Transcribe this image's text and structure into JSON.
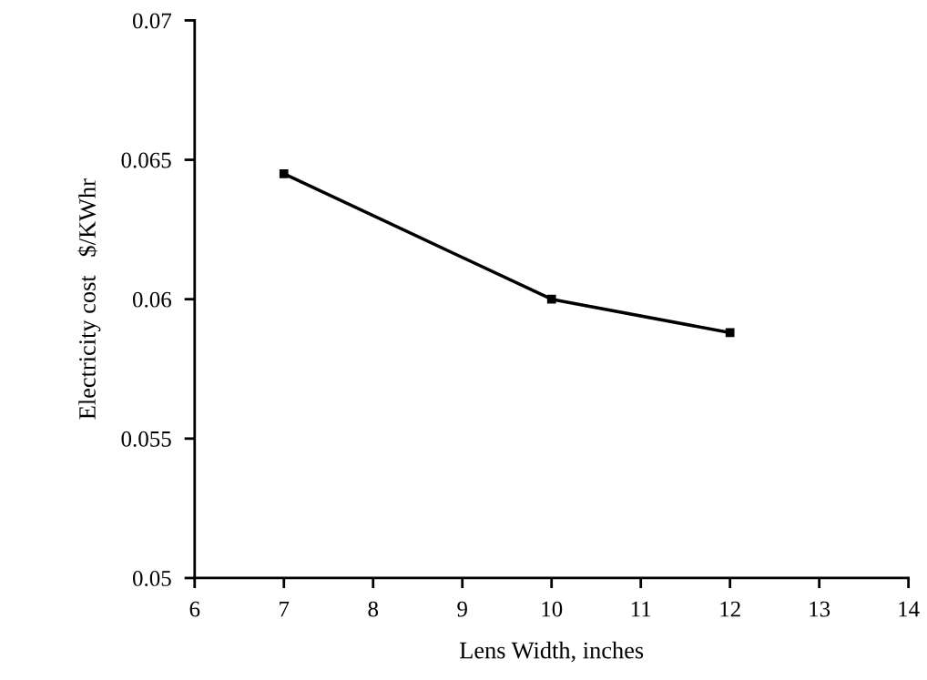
{
  "chart_data": {
    "type": "line",
    "xlabel": "Lens Width, inches",
    "ylabel": "Electricity cost   $/KWhr",
    "x": [
      7,
      10,
      12
    ],
    "series": [
      {
        "color": "#000000",
        "values": [
          0.0645,
          0.06,
          0.0588
        ]
      }
    ],
    "xlim": [
      6,
      14
    ],
    "xticks": [
      6,
      7,
      8,
      9,
      10,
      11,
      12,
      13,
      14
    ],
    "ylim": [
      0.05,
      0.07
    ],
    "yticks": [
      0.05,
      0.055,
      0.06,
      0.065,
      0.07
    ],
    "marker": "square",
    "line_style": "solid",
    "grid": false,
    "legend": false
  }
}
